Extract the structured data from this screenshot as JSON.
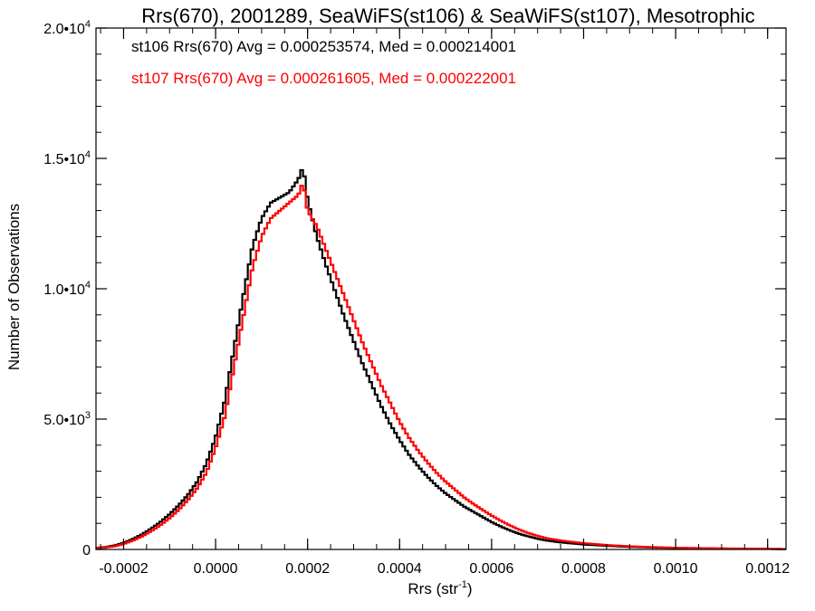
{
  "chart_data": {
    "type": "line",
    "style": "step-histogram",
    "title": "Rrs(670), 2001289, SeaWiFS(st106) & SeaWiFS(st107), Mesotrophic",
    "xlabel_main": "Rrs (str",
    "xlabel_sup": "-1",
    "xlabel_close": ")",
    "ylabel": "Number of Observations",
    "xlim": [
      -0.00026,
      0.00124
    ],
    "ylim": [
      0,
      20000
    ],
    "xticks": [
      -0.0002,
      0.0,
      0.0002,
      0.0004,
      0.0006,
      0.0008,
      0.001,
      0.0012
    ],
    "xtick_labels": [
      "-0.0002",
      "0.0000",
      "0.0002",
      "0.0004",
      "0.0006",
      "0.0008",
      "0.0010",
      "0.0012"
    ],
    "yticks": [
      {
        "value": 0,
        "mant": "0",
        "exp": ""
      },
      {
        "value": 5000,
        "mant": "5.0•10",
        "exp": "3"
      },
      {
        "value": 10000,
        "mant": "1.0•10",
        "exp": "4"
      },
      {
        "value": 15000,
        "mant": "1.5•10",
        "exp": "4"
      },
      {
        "value": 20000,
        "mant": "2.0•10",
        "exp": "4"
      }
    ],
    "grid": false,
    "legend_position": "top-left",
    "series": [
      {
        "name": "st106",
        "color": "#000000",
        "stats_text": "st106 Rrs(670) Avg = 0.000253574, Med = 0.000214001",
        "points": [
          [
            -0.00026,
            60
          ],
          [
            -0.00024,
            90
          ],
          [
            -0.00022,
            150
          ],
          [
            -0.0002,
            250
          ],
          [
            -0.00018,
            400
          ],
          [
            -0.00016,
            580
          ],
          [
            -0.00014,
            800
          ],
          [
            -0.00012,
            1050
          ],
          [
            -0.0001,
            1350
          ],
          [
            -8e-05,
            1700
          ],
          [
            -6e-05,
            2100
          ],
          [
            -4e-05,
            2600
          ],
          [
            -2e-05,
            3300
          ],
          [
            0.0,
            4300
          ],
          [
            2e-05,
            5700
          ],
          [
            4e-05,
            7700
          ],
          [
            6e-05,
            9700
          ],
          [
            8e-05,
            11600
          ],
          [
            0.0001,
            12700
          ],
          [
            0.00012,
            13300
          ],
          [
            0.00014,
            13500
          ],
          [
            0.00016,
            13700
          ],
          [
            0.00018,
            14200
          ],
          [
            0.00019,
            14700
          ],
          [
            0.0002,
            13400
          ],
          [
            0.00022,
            12000
          ],
          [
            0.00024,
            10900
          ],
          [
            0.00026,
            9900
          ],
          [
            0.00028,
            8900
          ],
          [
            0.0003,
            8000
          ],
          [
            0.00032,
            7100
          ],
          [
            0.00034,
            6300
          ],
          [
            0.00036,
            5500
          ],
          [
            0.00038,
            4800
          ],
          [
            0.0004,
            4200
          ],
          [
            0.00042,
            3650
          ],
          [
            0.00044,
            3200
          ],
          [
            0.00046,
            2800
          ],
          [
            0.00048,
            2450
          ],
          [
            0.0005,
            2150
          ],
          [
            0.00052,
            1900
          ],
          [
            0.00054,
            1650
          ],
          [
            0.00056,
            1450
          ],
          [
            0.00058,
            1250
          ],
          [
            0.0006,
            1050
          ],
          [
            0.00062,
            880
          ],
          [
            0.00064,
            730
          ],
          [
            0.00066,
            600
          ],
          [
            0.00068,
            500
          ],
          [
            0.0007,
            410
          ],
          [
            0.00072,
            340
          ],
          [
            0.00075,
            270
          ],
          [
            0.0008,
            190
          ],
          [
            0.00085,
            140
          ],
          [
            0.0009,
            100
          ],
          [
            0.00095,
            75
          ],
          [
            0.001,
            55
          ],
          [
            0.0011,
            35
          ],
          [
            0.0012,
            20
          ],
          [
            0.00124,
            15
          ]
        ]
      },
      {
        "name": "st107",
        "color": "#ff0000",
        "stats_text": "st107 Rrs(670) Avg = 0.000261605, Med = 0.000222001",
        "points": [
          [
            -0.00026,
            50
          ],
          [
            -0.00024,
            75
          ],
          [
            -0.00022,
            120
          ],
          [
            -0.0002,
            210
          ],
          [
            -0.00018,
            340
          ],
          [
            -0.00016,
            500
          ],
          [
            -0.00014,
            700
          ],
          [
            -0.00012,
            930
          ],
          [
            -0.0001,
            1200
          ],
          [
            -8e-05,
            1520
          ],
          [
            -6e-05,
            1900
          ],
          [
            -4e-05,
            2350
          ],
          [
            -2e-05,
            2950
          ],
          [
            0.0,
            3900
          ],
          [
            2e-05,
            5100
          ],
          [
            4e-05,
            7000
          ],
          [
            6e-05,
            8900
          ],
          [
            8e-05,
            10800
          ],
          [
            0.0001,
            12000
          ],
          [
            0.00012,
            12700
          ],
          [
            0.00014,
            13000
          ],
          [
            0.00016,
            13300
          ],
          [
            0.00018,
            13600
          ],
          [
            0.00019,
            14100
          ],
          [
            0.0002,
            13000
          ],
          [
            0.00022,
            12400
          ],
          [
            0.00024,
            11500
          ],
          [
            0.00026,
            10600
          ],
          [
            0.00028,
            9700
          ],
          [
            0.0003,
            8800
          ],
          [
            0.00032,
            7900
          ],
          [
            0.00034,
            7100
          ],
          [
            0.00036,
            6300
          ],
          [
            0.00038,
            5600
          ],
          [
            0.0004,
            4900
          ],
          [
            0.00042,
            4300
          ],
          [
            0.00044,
            3800
          ],
          [
            0.00046,
            3350
          ],
          [
            0.00048,
            2950
          ],
          [
            0.0005,
            2600
          ],
          [
            0.00052,
            2300
          ],
          [
            0.00054,
            2000
          ],
          [
            0.00056,
            1750
          ],
          [
            0.00058,
            1520
          ],
          [
            0.0006,
            1300
          ],
          [
            0.00062,
            1100
          ],
          [
            0.00064,
            920
          ],
          [
            0.00066,
            760
          ],
          [
            0.00068,
            630
          ],
          [
            0.0007,
            520
          ],
          [
            0.00072,
            430
          ],
          [
            0.00075,
            340
          ],
          [
            0.0008,
            240
          ],
          [
            0.00085,
            170
          ],
          [
            0.0009,
            120
          ],
          [
            0.00095,
            90
          ],
          [
            0.001,
            65
          ],
          [
            0.0011,
            40
          ],
          [
            0.0012,
            25
          ],
          [
            0.00124,
            18
          ]
        ]
      }
    ]
  }
}
